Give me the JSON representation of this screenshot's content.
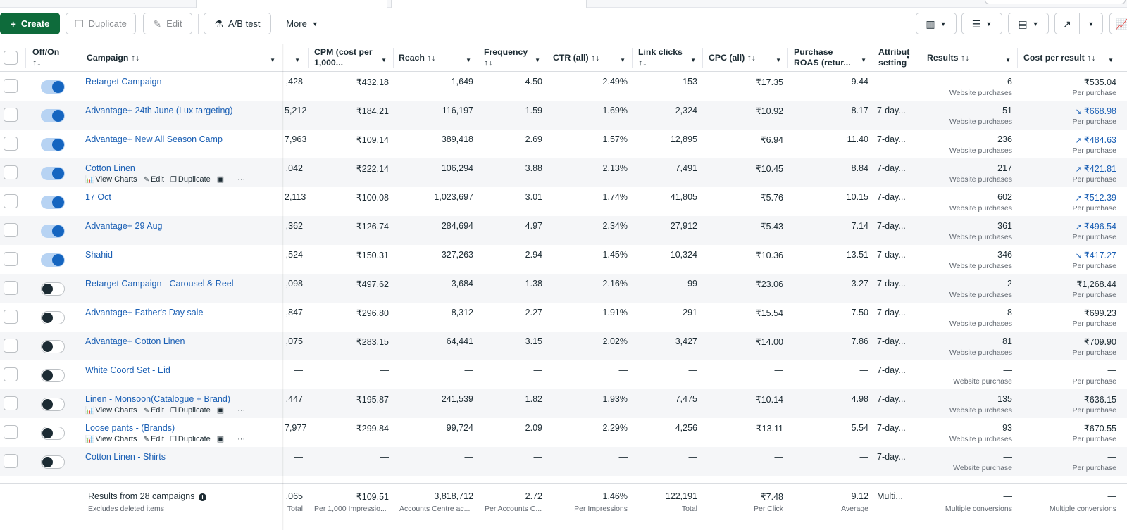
{
  "toolbar": {
    "create": "Create",
    "duplicate": "Duplicate",
    "edit": "Edit",
    "ab_test": "A/B test",
    "more": "More"
  },
  "columns": {
    "off_on": "Off/On",
    "off_on_sort": "↑↓",
    "campaign": "Campaign ↑↓",
    "cpm": "CPM (cost per 1,000...",
    "reach": "Reach ↑↓",
    "frequency": "Frequency",
    "frequency_sort": "↑↓",
    "ctr": "CTR (all) ↑↓",
    "link_clicks": "Link clicks",
    "link_clicks_sort": "↑↓",
    "cpc": "CPC (all) ↑↓",
    "roas": "Purchase ROAS (retur...",
    "attribution": "Attribut setting",
    "results": "Results ↑↓",
    "cost_per_result": "Cost per result ↑↓"
  },
  "row_actions": {
    "view_charts": "View Charts",
    "edit": "Edit",
    "duplicate": "Duplicate",
    "more": "···"
  },
  "rows": [
    {
      "name": "Retarget Campaign",
      "on": true,
      "impr": ",428",
      "cpm": "₹432.18",
      "reach": "1,649",
      "freq": "4.50",
      "ctr": "2.49%",
      "clicks": "153",
      "cpc": "₹17.35",
      "roas": "9.44",
      "attr": "-",
      "results": "6",
      "results_sub": "Website purchases",
      "cpr": "₹535.04",
      "cpr_sub": "Per purchase",
      "trend": "",
      "actions": false
    },
    {
      "name": "Advantage+ 24th June (Lux targeting)",
      "on": true,
      "impr": "5,212",
      "cpm": "₹184.21",
      "reach": "116,197",
      "freq": "1.59",
      "ctr": "1.69%",
      "clicks": "2,324",
      "cpc": "₹10.92",
      "roas": "8.17",
      "attr": "7-day...",
      "results": "51",
      "results_sub": "Website purchases",
      "cpr": "₹668.98",
      "cpr_sub": "Per purchase",
      "trend": "↘",
      "actions": false
    },
    {
      "name": "Advantage+ New All Season Camp",
      "on": true,
      "impr": "7,963",
      "cpm": "₹109.14",
      "reach": "389,418",
      "freq": "2.69",
      "ctr": "1.57%",
      "clicks": "12,895",
      "cpc": "₹6.94",
      "roas": "11.40",
      "attr": "7-day...",
      "results": "236",
      "results_sub": "Website purchases",
      "cpr": "₹484.63",
      "cpr_sub": "Per purchase",
      "trend": "↗",
      "actions": false
    },
    {
      "name": "Cotton Linen",
      "on": true,
      "impr": ",042",
      "cpm": "₹222.14",
      "reach": "106,294",
      "freq": "3.88",
      "ctr": "2.13%",
      "clicks": "7,491",
      "cpc": "₹10.45",
      "roas": "8.84",
      "attr": "7-day...",
      "results": "217",
      "results_sub": "Website purchases",
      "cpr": "₹421.81",
      "cpr_sub": "Per purchase",
      "trend": "↗",
      "actions": true
    },
    {
      "name": "17 Oct",
      "on": true,
      "impr": "2,113",
      "cpm": "₹100.08",
      "reach": "1,023,697",
      "freq": "3.01",
      "ctr": "1.74%",
      "clicks": "41,805",
      "cpc": "₹5.76",
      "roas": "10.15",
      "attr": "7-day...",
      "results": "602",
      "results_sub": "Website purchases",
      "cpr": "₹512.39",
      "cpr_sub": "Per purchase",
      "trend": "↗",
      "actions": false
    },
    {
      "name": "Advantage+ 29 Aug",
      "on": true,
      "impr": ",362",
      "cpm": "₹126.74",
      "reach": "284,694",
      "freq": "4.97",
      "ctr": "2.34%",
      "clicks": "27,912",
      "cpc": "₹5.43",
      "roas": "7.14",
      "attr": "7-day...",
      "results": "361",
      "results_sub": "Website purchases",
      "cpr": "₹496.54",
      "cpr_sub": "Per purchase",
      "trend": "↗",
      "actions": false
    },
    {
      "name": "Shahid",
      "on": true,
      "impr": ",524",
      "cpm": "₹150.31",
      "reach": "327,263",
      "freq": "2.94",
      "ctr": "1.45%",
      "clicks": "10,324",
      "cpc": "₹10.36",
      "roas": "13.51",
      "attr": "7-day...",
      "results": "346",
      "results_sub": "Website purchases",
      "cpr": "₹417.27",
      "cpr_sub": "Per purchase",
      "trend": "↘",
      "actions": false
    },
    {
      "name": "Retarget Campaign - Carousel & Reel",
      "on": false,
      "impr": ",098",
      "cpm": "₹497.62",
      "reach": "3,684",
      "freq": "1.38",
      "ctr": "2.16%",
      "clicks": "99",
      "cpc": "₹23.06",
      "roas": "3.27",
      "attr": "7-day...",
      "results": "2",
      "results_sub": "Website purchases",
      "cpr": "₹1,268.44",
      "cpr_sub": "Per purchase",
      "trend": "",
      "actions": false
    },
    {
      "name": "Advantage+ Father's Day sale",
      "on": false,
      "impr": ",847",
      "cpm": "₹296.80",
      "reach": "8,312",
      "freq": "2.27",
      "ctr": "1.91%",
      "clicks": "291",
      "cpc": "₹15.54",
      "roas": "7.50",
      "attr": "7-day...",
      "results": "8",
      "results_sub": "Website purchases",
      "cpr": "₹699.23",
      "cpr_sub": "Per purchase",
      "trend": "",
      "actions": false
    },
    {
      "name": "Advantage+ Cotton Linen",
      "on": false,
      "impr": ",075",
      "cpm": "₹283.15",
      "reach": "64,441",
      "freq": "3.15",
      "ctr": "2.02%",
      "clicks": "3,427",
      "cpc": "₹14.00",
      "roas": "7.86",
      "attr": "7-day...",
      "results": "81",
      "results_sub": "Website purchases",
      "cpr": "₹709.90",
      "cpr_sub": "Per purchase",
      "trend": "",
      "actions": false
    },
    {
      "name": "White Coord Set - Eid",
      "on": false,
      "impr": "—",
      "cpm": "—",
      "reach": "—",
      "freq": "—",
      "ctr": "—",
      "clicks": "—",
      "cpc": "—",
      "roas": "—",
      "attr": "7-day...",
      "results": "—",
      "results_sub": "Website purchase",
      "cpr": "—",
      "cpr_sub": "Per purchase",
      "trend": "",
      "actions": false
    },
    {
      "name": "Linen - Monsoon(Catalogue + Brand)",
      "on": false,
      "impr": ",447",
      "cpm": "₹195.87",
      "reach": "241,539",
      "freq": "1.82",
      "ctr": "1.93%",
      "clicks": "7,475",
      "cpc": "₹10.14",
      "roas": "4.98",
      "attr": "7-day...",
      "results": "135",
      "results_sub": "Website purchases",
      "cpr": "₹636.15",
      "cpr_sub": "Per purchase",
      "trend": "",
      "actions": true
    },
    {
      "name": "Loose pants - (Brands)",
      "on": false,
      "impr": "7,977",
      "cpm": "₹299.84",
      "reach": "99,724",
      "freq": "2.09",
      "ctr": "2.29%",
      "clicks": "4,256",
      "cpc": "₹13.11",
      "roas": "5.54",
      "attr": "7-day...",
      "results": "93",
      "results_sub": "Website purchases",
      "cpr": "₹670.55",
      "cpr_sub": "Per purchase",
      "trend": "",
      "actions": true
    },
    {
      "name": "Cotton Linen - Shirts",
      "on": false,
      "impr": "—",
      "cpm": "—",
      "reach": "—",
      "freq": "—",
      "ctr": "—",
      "clicks": "—",
      "cpc": "—",
      "roas": "—",
      "attr": "7-day...",
      "results": "—",
      "results_sub": "Website purchase",
      "cpr": "—",
      "cpr_sub": "Per purchase",
      "trend": "",
      "actions": false
    }
  ],
  "footer": {
    "title": "Results from 28 campaigns",
    "subtitle": "Excludes deleted items",
    "impr": ",065",
    "impr_sub": "Total",
    "cpm": "₹109.51",
    "cpm_sub": "Per 1,000 Impressio...",
    "reach": "3,818,712",
    "reach_sub": "Accounts Centre ac...",
    "freq": "2.72",
    "freq_sub": "Per Accounts C...",
    "ctr": "1.46%",
    "ctr_sub": "Per Impressions",
    "clicks": "122,191",
    "clicks_sub": "Total",
    "cpc": "₹7.48",
    "cpc_sub": "Per Click",
    "roas": "9.12",
    "roas_sub": "Average",
    "attr": "Multi...",
    "results": "—",
    "results_sub": "Multiple conversions",
    "cpr": "—",
    "cpr_sub": "Multiple conversions"
  },
  "colors": {
    "accent": "#0e6b3b",
    "link": "#1a5fb4",
    "toggle_on": "#1565c0"
  }
}
